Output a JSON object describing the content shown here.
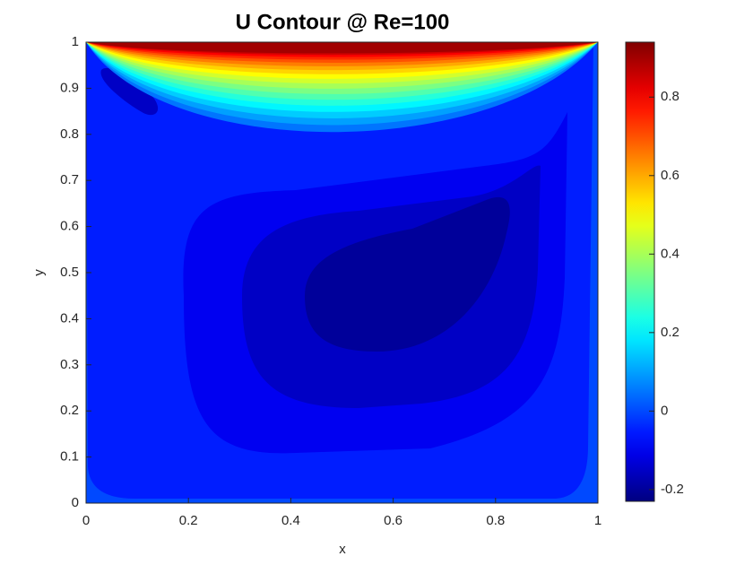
{
  "chart_data": {
    "type": "contour",
    "title": "U Contour @ Re=100",
    "x_label": "x",
    "y_label": "y",
    "xlim": [
      0,
      1
    ],
    "xticks": [
      0,
      0.2,
      0.4,
      0.6,
      0.8,
      1
    ],
    "ylim": [
      0,
      1
    ],
    "yticks": [
      0,
      0.1,
      0.2,
      0.3,
      0.4,
      0.5,
      0.6,
      0.7,
      0.8,
      0.9,
      1
    ],
    "colormap": "jet",
    "clim": [
      -0.23,
      0.94
    ],
    "colorbar_ticks": [
      -0.2,
      0,
      0.2,
      0.4,
      0.6,
      0.8
    ],
    "levels": [
      -0.2,
      -0.15,
      -0.1,
      -0.05,
      0,
      0.05,
      0.1,
      0.15,
      0.2,
      0.25,
      0.3,
      0.35,
      0.4,
      0.45,
      0.5,
      0.55,
      0.6,
      0.65,
      0.7,
      0.75,
      0.8,
      0.85,
      0.9
    ]
  }
}
